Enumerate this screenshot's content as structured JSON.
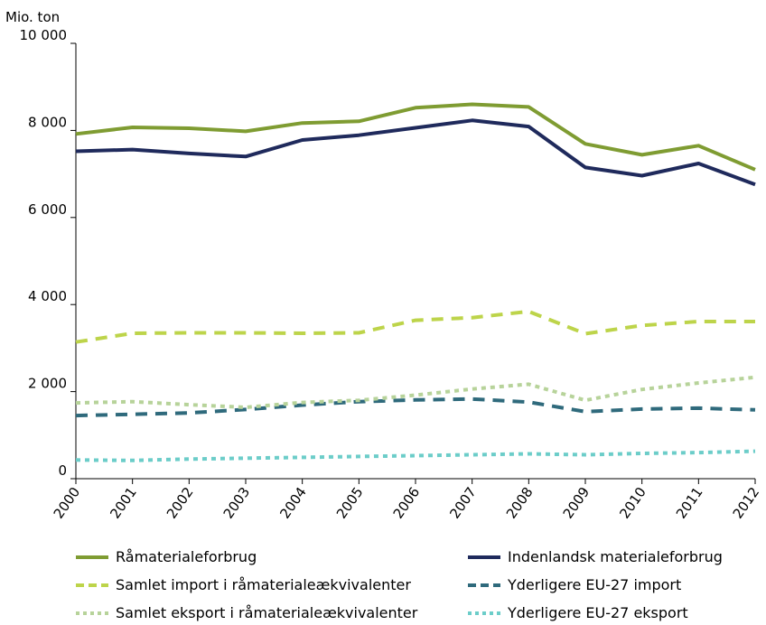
{
  "chart_data": {
    "type": "line",
    "title": "",
    "ylabel": "Mio. ton",
    "xlabel": "",
    "ylim": [
      0,
      10000
    ],
    "yticks": [
      0,
      2000,
      4000,
      6000,
      8000,
      10000
    ],
    "ytick_labels": [
      "0",
      "2 000",
      "4 000",
      "6 000",
      "8 000",
      "10 000"
    ],
    "categories": [
      "2000",
      "2001",
      "2002",
      "2003",
      "2004",
      "2005",
      "2006",
      "2007",
      "2008",
      "2009",
      "2010",
      "2011",
      "2012"
    ],
    "grid": false,
    "legend_position": "bottom",
    "series": [
      {
        "name": "Råmaterialeforbrug",
        "color": "#7f9c32",
        "style": "solid",
        "values": [
          7920,
          8070,
          8050,
          7980,
          8170,
          8210,
          8520,
          8600,
          8540,
          7690,
          7440,
          7650,
          7100
        ]
      },
      {
        "name": "Indenlandsk materialeforbrug",
        "color": "#1f2a5c",
        "style": "solid",
        "values": [
          7520,
          7560,
          7470,
          7400,
          7780,
          7890,
          8060,
          8230,
          8090,
          7150,
          6960,
          7240,
          6760
        ]
      },
      {
        "name": "Samlet import i råmaterialeækvivalenter",
        "color": "#bdd44a",
        "style": "dashed",
        "values": [
          3140,
          3340,
          3350,
          3350,
          3340,
          3350,
          3640,
          3700,
          3840,
          3330,
          3520,
          3610,
          3610
        ]
      },
      {
        "name": "Yderligere EU-27 import",
        "color": "#2f6a7c",
        "style": "dashed",
        "values": [
          1450,
          1480,
          1510,
          1590,
          1690,
          1770,
          1810,
          1830,
          1760,
          1540,
          1600,
          1620,
          1580
        ]
      },
      {
        "name": "Samlet eksport i råmaterialeækvivalenter",
        "color": "#b7d39a",
        "style": "dotted",
        "values": [
          1740,
          1770,
          1700,
          1640,
          1750,
          1800,
          1920,
          2060,
          2170,
          1800,
          2050,
          2200,
          2330
        ]
      },
      {
        "name": "Yderligere EU-27 eksport",
        "color": "#6ccdc9",
        "style": "dotted",
        "values": [
          430,
          420,
          450,
          470,
          490,
          510,
          530,
          550,
          570,
          550,
          580,
          600,
          630
        ]
      }
    ]
  }
}
